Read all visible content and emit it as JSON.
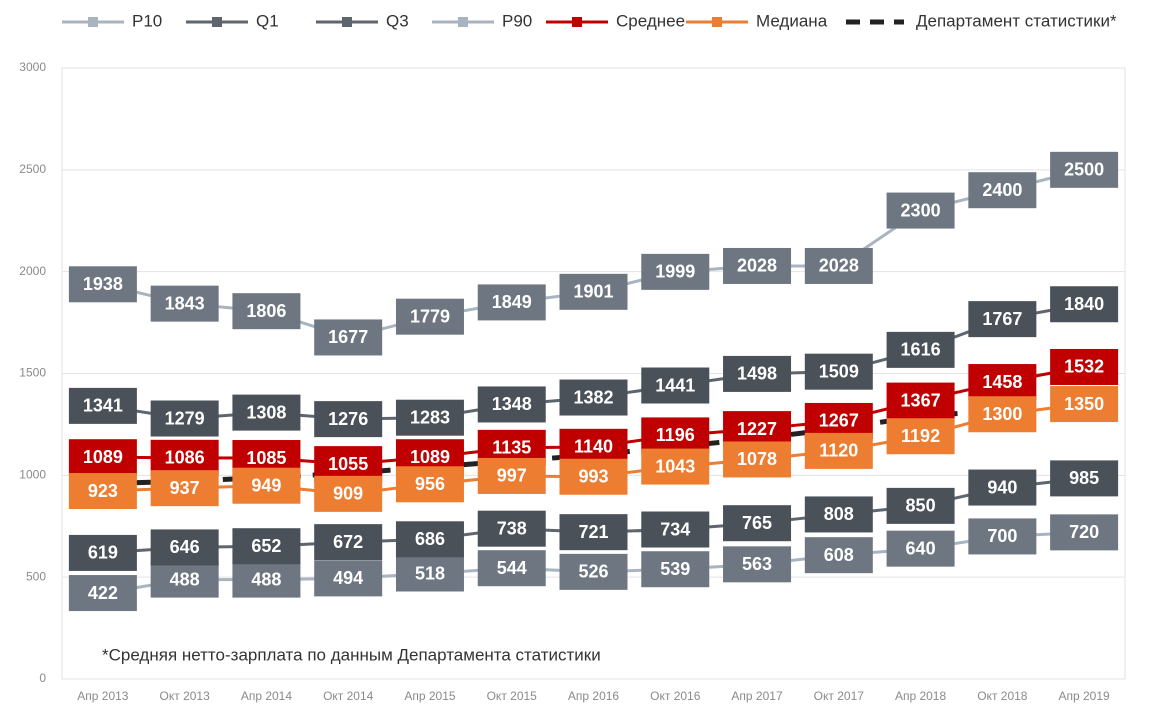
{
  "chart_data": {
    "type": "line",
    "footnote": "*Средняя нетто-зарплата по данным Департамента статистики",
    "categories": [
      "Апр 2013",
      "Окт 2013",
      "Апр 2014",
      "Окт 2014",
      "Апр 2015",
      "Окт 2015",
      "Апр 2016",
      "Окт 2016",
      "Апр 2017",
      "Окт 2017",
      "Апр 2018",
      "Окт 2018",
      "Апр 2019"
    ],
    "ylim": [
      0,
      3000
    ],
    "yticks": [
      0,
      500,
      1000,
      1500,
      2000,
      2500,
      3000
    ],
    "grid": true,
    "legend": "top",
    "series": [
      {
        "name": "P10",
        "color": "#a8b4c0",
        "label_color": "#6e7781",
        "values": [
          422,
          488,
          488,
          494,
          518,
          544,
          526,
          539,
          563,
          608,
          640,
          700,
          720
        ]
      },
      {
        "name": "Q1",
        "color": "#5d666e",
        "label_color": "#4a5158",
        "values": [
          619,
          646,
          652,
          672,
          686,
          738,
          721,
          734,
          765,
          808,
          850,
          940,
          985
        ]
      },
      {
        "name": "Q3",
        "color": "#5d666e",
        "label_color": "#4a5158",
        "values": [
          1341,
          1279,
          1308,
          1276,
          1283,
          1348,
          1382,
          1441,
          1498,
          1509,
          1616,
          1767,
          1840
        ]
      },
      {
        "name": "P90",
        "color": "#a8b4c0",
        "label_color": "#6e7781",
        "values": [
          1938,
          1843,
          1806,
          1677,
          1779,
          1849,
          1901,
          1999,
          2028,
          2028,
          2300,
          2400,
          2500
        ]
      },
      {
        "name": "Среднее",
        "color": "#c00000",
        "label_color": "#c00000",
        "values": [
          1089,
          1086,
          1085,
          1055,
          1089,
          1135,
          1140,
          1196,
          1227,
          1267,
          1367,
          1458,
          1532
        ]
      },
      {
        "name": "Медиана",
        "color": "#ed7d31",
        "label_color": "#ed7d31",
        "values": [
          923,
          937,
          949,
          909,
          956,
          997,
          993,
          1043,
          1078,
          1120,
          1192,
          1300,
          1350
        ]
      },
      {
        "name": "Департамент статистики*",
        "color": "#222222",
        "dashed": true,
        "values": [
          960,
          970,
          990,
          1010,
          1040,
          1070,
          1100,
          1140,
          1180,
          1230,
          1290,
          1320,
          null
        ]
      }
    ]
  }
}
